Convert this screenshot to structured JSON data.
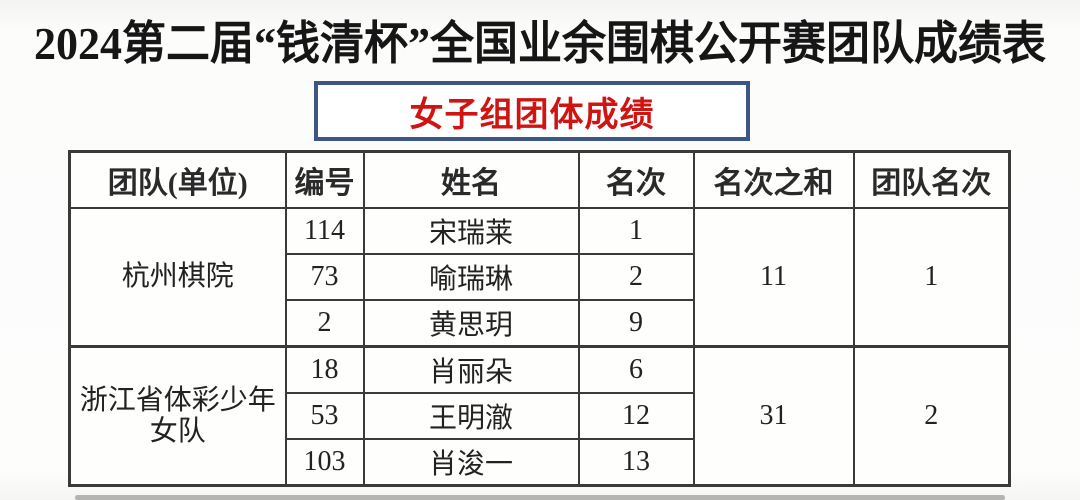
{
  "page_title": "2024第二届“钱清杯”全国业余围棋公开赛团队成绩表",
  "subtitle_box": {
    "label": "女子组团体成绩",
    "text_color": "#cf1412",
    "border_color": "#3c5784"
  },
  "results_table": {
    "headers": {
      "team": "团队(单位)",
      "number": "编号",
      "name": "姓名",
      "rank": "名次",
      "rank_sum": "名次之和",
      "team_rank": "团队名次"
    },
    "teams": [
      {
        "name": "杭州棋院",
        "players": [
          {
            "number": "114",
            "name": "宋瑞莱",
            "rank": "1"
          },
          {
            "number": "73",
            "name": "喻瑞琳",
            "rank": "2"
          },
          {
            "number": "2",
            "name": "黄思玥",
            "rank": "9"
          }
        ],
        "rank_sum": "11",
        "team_rank": "1"
      },
      {
        "name": "浙江省体彩少年女队",
        "players": [
          {
            "number": "18",
            "name": "肖丽朵",
            "rank": "6"
          },
          {
            "number": "53",
            "name": "王明澈",
            "rank": "12"
          },
          {
            "number": "103",
            "name": "肖浚一",
            "rank": "13"
          }
        ],
        "rank_sum": "31",
        "team_rank": "2"
      }
    ]
  }
}
